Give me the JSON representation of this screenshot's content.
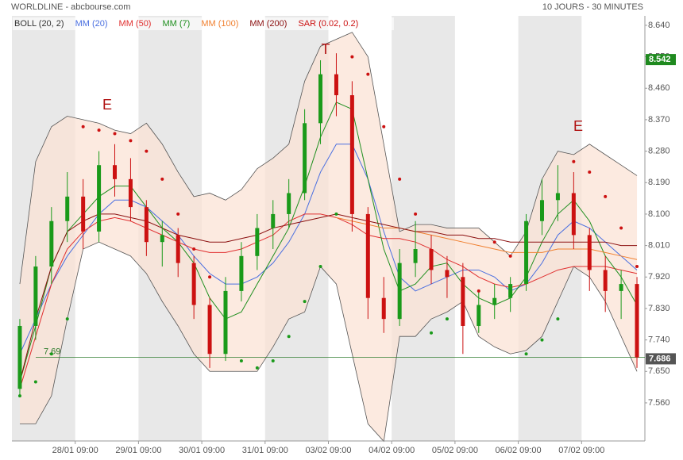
{
  "chart_data": {
    "type": "candlestick",
    "title": "WORLDLINE - abcbourse.com",
    "subtitle": "10 JOURS - 30 MINUTES",
    "categories": [
      null,
      null,
      null,
      null,
      "28/01 09:00",
      null,
      null,
      null,
      "29/01 09:00",
      null,
      null,
      null,
      "30/01 09:00",
      null,
      null,
      null,
      "31/01 09:00",
      null,
      null,
      null,
      "03/02 09:00",
      null,
      null,
      null,
      "04/02 09:00",
      null,
      null,
      null,
      "05/02 09:00",
      null,
      null,
      null,
      "06/02 09:00",
      null,
      null,
      null,
      "07/02 09:00",
      null,
      null,
      null
    ],
    "open": [
      7.6,
      7.78,
      7.95,
      8.08,
      8.15,
      8.05,
      8.24,
      8.2,
      8.12,
      8.02,
      8.04,
      7.96,
      7.84,
      7.7,
      7.88,
      7.98,
      8.06,
      8.1,
      8.16,
      8.36,
      8.5,
      8.44,
      8.1,
      7.86,
      7.8,
      7.96,
      8.0,
      7.94,
      7.92,
      7.78,
      7.84,
      7.86,
      7.9,
      8.08,
      8.14,
      8.16,
      8.04,
      7.94,
      7.88,
      7.9
    ],
    "high": [
      7.8,
      7.98,
      8.12,
      8.22,
      8.2,
      8.28,
      8.3,
      8.26,
      8.14,
      8.08,
      8.06,
      7.98,
      7.86,
      7.92,
      8.02,
      8.1,
      8.14,
      8.2,
      8.4,
      8.54,
      8.56,
      8.48,
      8.12,
      7.92,
      8.0,
      8.08,
      8.04,
      7.98,
      7.96,
      7.88,
      7.9,
      7.92,
      8.1,
      8.2,
      8.24,
      8.22,
      8.06,
      7.98,
      7.94,
      7.92
    ],
    "low": [
      7.58,
      7.74,
      7.9,
      8.02,
      8.0,
      8.02,
      8.15,
      8.08,
      7.98,
      7.95,
      7.92,
      7.8,
      7.66,
      7.68,
      7.85,
      7.94,
      8.0,
      8.06,
      8.14,
      8.3,
      8.38,
      8.05,
      7.8,
      7.76,
      7.78,
      7.92,
      7.9,
      7.86,
      7.7,
      7.76,
      7.8,
      7.82,
      7.88,
      8.04,
      8.08,
      8.0,
      7.88,
      7.82,
      7.8,
      7.66
    ],
    "close": [
      7.78,
      7.95,
      8.08,
      8.15,
      8.05,
      8.24,
      8.2,
      8.12,
      8.02,
      8.04,
      7.96,
      7.84,
      7.7,
      7.88,
      7.98,
      8.06,
      8.1,
      8.16,
      8.36,
      8.5,
      8.44,
      8.1,
      7.86,
      7.8,
      7.96,
      8.0,
      7.94,
      7.92,
      7.78,
      7.84,
      7.86,
      7.9,
      8.08,
      8.14,
      8.16,
      8.04,
      7.94,
      7.88,
      7.9,
      7.69
    ],
    "up_color": "#1a9a1a",
    "down_color": "#cc1111",
    "bands": {
      "name": "BOLL (20, 2)",
      "color": "#555555",
      "fill": "#fbe3d6",
      "upper": [
        7.9,
        8.25,
        8.35,
        8.38,
        8.37,
        8.36,
        8.34,
        8.33,
        8.36,
        8.3,
        8.22,
        8.15,
        8.16,
        8.14,
        8.17,
        8.23,
        8.26,
        8.3,
        8.48,
        8.58,
        8.6,
        8.62,
        8.55,
        8.3,
        8.05,
        8.07,
        8.07,
        8.06,
        8.06,
        8.06,
        8.02,
        7.98,
        8.05,
        8.2,
        8.28,
        8.27,
        8.3,
        8.27,
        8.24,
        8.21
      ],
      "lower": [
        7.5,
        7.5,
        7.58,
        7.8,
        8.0,
        8.02,
        8.0,
        7.98,
        7.93,
        7.85,
        7.78,
        7.7,
        7.65,
        7.65,
        7.65,
        7.65,
        7.72,
        7.8,
        7.82,
        7.95,
        7.9,
        7.7,
        7.5,
        7.45,
        7.75,
        7.75,
        7.8,
        7.82,
        7.85,
        7.75,
        7.72,
        7.7,
        7.71,
        7.75,
        7.85,
        7.95,
        7.92,
        7.85,
        7.75,
        7.65
      ]
    },
    "series": [
      {
        "name": "MM (20)",
        "color": "#4a6fe0",
        "values": [
          7.7,
          7.8,
          7.9,
          7.98,
          8.04,
          8.1,
          8.14,
          8.14,
          8.12,
          8.08,
          8.04,
          7.98,
          7.93,
          7.9,
          7.9,
          7.92,
          7.96,
          8.02,
          8.1,
          8.22,
          8.3,
          8.3,
          8.2,
          8.05,
          7.92,
          7.88,
          7.9,
          7.92,
          7.94,
          7.94,
          7.92,
          7.88,
          7.9,
          7.96,
          8.04,
          8.08,
          8.06,
          8.02,
          7.98,
          7.94
        ]
      },
      {
        "name": "MM (50)",
        "color": "#e03030",
        "values": [
          7.6,
          7.75,
          7.9,
          8.0,
          8.05,
          8.08,
          8.09,
          8.08,
          8.06,
          8.04,
          8.02,
          8.0,
          7.99,
          7.99,
          8.0,
          8.02,
          8.04,
          8.08,
          8.1,
          8.1,
          8.09,
          8.07,
          8.04,
          8.03,
          8.03,
          8.02,
          8.0,
          7.97,
          7.95,
          7.92,
          7.9,
          7.89,
          7.9,
          7.92,
          7.94,
          7.95,
          7.95,
          7.95,
          7.94,
          7.93
        ]
      },
      {
        "name": "MM (7)",
        "color": "#1f8f1f",
        "values": [
          7.62,
          7.78,
          7.95,
          8.05,
          8.1,
          8.15,
          8.18,
          8.18,
          8.12,
          8.06,
          8.02,
          7.96,
          7.86,
          7.8,
          7.82,
          7.9,
          7.98,
          8.06,
          8.18,
          8.32,
          8.42,
          8.4,
          8.2,
          8.0,
          7.88,
          7.9,
          7.95,
          7.96,
          7.9,
          7.86,
          7.84,
          7.86,
          7.92,
          8.02,
          8.1,
          8.14,
          8.08,
          7.98,
          7.92,
          7.84
        ]
      },
      {
        "name": "MM (100)",
        "color": "#f08030",
        "values": [
          null,
          null,
          null,
          null,
          null,
          null,
          null,
          null,
          null,
          null,
          null,
          null,
          null,
          null,
          null,
          null,
          null,
          null,
          null,
          null,
          8.09,
          8.08,
          8.07,
          8.06,
          8.06,
          8.05,
          8.04,
          8.03,
          8.02,
          8.01,
          8.0,
          7.99,
          7.99,
          7.99,
          8.0,
          8.0,
          8.0,
          7.99,
          7.98,
          7.97
        ]
      },
      {
        "name": "MM (200)",
        "color": "#8b1010",
        "values": [
          7.62,
          7.8,
          7.95,
          8.05,
          8.08,
          8.1,
          8.1,
          8.09,
          8.08,
          8.06,
          8.04,
          8.03,
          8.02,
          8.02,
          8.03,
          8.04,
          8.06,
          8.07,
          8.08,
          8.09,
          8.1,
          8.09,
          8.08,
          8.07,
          8.06,
          8.05,
          8.05,
          8.04,
          8.04,
          8.03,
          8.03,
          8.02,
          8.02,
          8.02,
          8.02,
          8.02,
          8.02,
          8.02,
          8.01,
          8.01
        ]
      }
    ],
    "sar": {
      "name": "SAR (0.02, 0.2)",
      "up_color": "#1a9a1a",
      "down_color": "#cc1111",
      "values": [
        7.58,
        7.62,
        7.7,
        7.8,
        8.35,
        8.34,
        8.33,
        8.31,
        8.28,
        8.2,
        8.1,
        8.0,
        7.92,
        7.8,
        7.68,
        7.66,
        7.68,
        7.75,
        7.85,
        7.95,
        8.1,
        8.55,
        8.5,
        8.35,
        8.2,
        8.1,
        7.76,
        7.8,
        7.84,
        7.88,
        8.02,
        7.98,
        7.7,
        7.74,
        7.8,
        8.25,
        8.22,
        8.15,
        8.06,
        7.95
      ]
    },
    "ylim": [
      7.451,
      8.667
    ],
    "yticks": [
      {
        "value": 7.56,
        "label": "7.560"
      },
      {
        "value": 7.65,
        "label": "7.650"
      },
      {
        "value": 7.74,
        "label": "7.740"
      },
      {
        "value": 7.83,
        "label": "7.830"
      },
      {
        "value": 7.92,
        "label": "7.920"
      },
      {
        "value": 8.01,
        "label": "8.010"
      },
      {
        "value": 8.1,
        "label": "8.100"
      },
      {
        "value": 8.19,
        "label": "8.190"
      },
      {
        "value": 8.28,
        "label": "8.280"
      },
      {
        "value": 8.37,
        "label": "8.370"
      },
      {
        "value": 8.46,
        "label": "8.460"
      },
      {
        "value": 8.55,
        "label": "8.550"
      },
      {
        "value": 8.64,
        "label": "8.640"
      }
    ],
    "support_line": {
      "value": 7.69,
      "color": "#2a7a2a"
    },
    "price_markers": [
      {
        "value": 8.542,
        "color": "#1f8a1f"
      },
      {
        "value": 7.686,
        "color": "#555555"
      }
    ],
    "annotations": [
      "E",
      "T",
      "E"
    ],
    "annotation_color": "#b01010"
  }
}
